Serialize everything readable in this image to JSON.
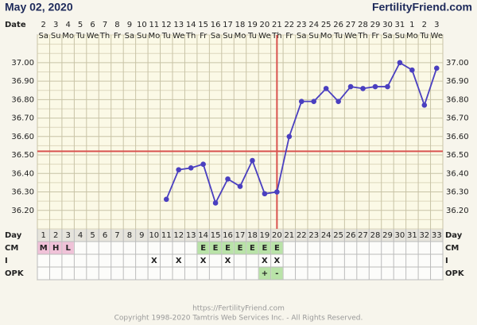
{
  "header": {
    "date": "May 02, 2020",
    "site": "FertilityFriend.com"
  },
  "chart_data": {
    "type": "line",
    "row_labels": {
      "date": "Date",
      "day": "Day",
      "cm": "CM",
      "i": "I",
      "opk": "OPK"
    },
    "dates": [
      2,
      3,
      4,
      5,
      6,
      7,
      8,
      9,
      10,
      11,
      12,
      13,
      14,
      15,
      16,
      17,
      18,
      19,
      20,
      21,
      22,
      23,
      24,
      25,
      26,
      27,
      28,
      29,
      30,
      31,
      1,
      2,
      3
    ],
    "weekdays": [
      "Sa",
      "Su",
      "Mo",
      "Tu",
      "We",
      "Th",
      "Fr",
      "Sa",
      "Su",
      "Mo",
      "Tu",
      "We",
      "Th",
      "Fr",
      "Sa",
      "Su",
      "Mo",
      "Tu",
      "We",
      "Th",
      "Fr",
      "Sa",
      "Su",
      "Mo",
      "Tu",
      "We",
      "Th",
      "Fr",
      "Sa",
      "Su",
      "Mo",
      "Tu",
      "We"
    ],
    "categories": [
      1,
      2,
      3,
      4,
      5,
      6,
      7,
      8,
      9,
      10,
      11,
      12,
      13,
      14,
      15,
      16,
      17,
      18,
      19,
      20,
      21,
      22,
      23,
      24,
      25,
      26,
      27,
      28,
      29,
      30,
      31,
      32,
      33
    ],
    "values": [
      null,
      null,
      null,
      null,
      null,
      null,
      null,
      null,
      null,
      null,
      36.26,
      36.42,
      36.43,
      36.45,
      36.24,
      36.37,
      36.33,
      36.47,
      36.29,
      36.3,
      36.6,
      36.79,
      36.79,
      36.86,
      36.79,
      36.87,
      36.86,
      36.87,
      36.87,
      37.0,
      36.96,
      36.77,
      36.97
    ],
    "color": "#4a3fc0",
    "ylim": [
      36.1,
      37.15
    ],
    "yticks": [
      {
        "value": 37,
        "label": "37.00"
      },
      {
        "value": 36.9,
        "label": "36.90"
      },
      {
        "value": 36.8,
        "label": "36.80"
      },
      {
        "value": 36.7,
        "label": "36.70"
      },
      {
        "value": 36.6,
        "label": "36.60"
      },
      {
        "value": 36.5,
        "label": "36.50"
      },
      {
        "value": 36.4,
        "label": "36.40"
      },
      {
        "value": 36.3,
        "label": "36.30"
      },
      {
        "value": 36.2,
        "label": "36.20"
      }
    ],
    "grid": true,
    "coverline": 36.52,
    "ovulation_day": 20,
    "marker_color": "#d9534f",
    "cm": [
      {
        "label": "M",
        "color": "#f0c2d8"
      },
      {
        "label": "H",
        "color": "#f0c2d8"
      },
      {
        "label": "L",
        "color": "#f0c2d8"
      },
      null,
      null,
      null,
      null,
      null,
      null,
      null,
      null,
      null,
      null,
      {
        "label": "E",
        "color": "#b9e3a8"
      },
      {
        "label": "E",
        "color": "#b9e3a8"
      },
      {
        "label": "E",
        "color": "#b9e3a8"
      },
      {
        "label": "E",
        "color": "#b9e3a8"
      },
      {
        "label": "E",
        "color": "#b9e3a8"
      },
      {
        "label": "E",
        "color": "#b9e3a8"
      },
      {
        "label": "E",
        "color": "#b9e3a8"
      },
      null,
      null,
      null,
      null,
      null,
      null,
      null,
      null,
      null,
      null,
      null,
      null,
      null
    ],
    "intercourse": [
      null,
      null,
      null,
      null,
      null,
      null,
      null,
      null,
      null,
      "X",
      null,
      "X",
      null,
      "X",
      null,
      "X",
      null,
      null,
      "X",
      "X",
      null,
      null,
      null,
      null,
      null,
      null,
      null,
      null,
      null,
      null,
      null,
      null,
      null
    ],
    "opk": [
      null,
      null,
      null,
      null,
      null,
      null,
      null,
      null,
      null,
      null,
      null,
      null,
      null,
      null,
      null,
      null,
      null,
      null,
      {
        "label": "+",
        "color": "#b9e3a8"
      },
      {
        "label": "-",
        "color": "#b9e3a8"
      },
      null,
      null,
      null,
      null,
      null,
      null,
      null,
      null,
      null,
      null,
      null,
      null,
      null
    ]
  },
  "footer": {
    "url": "https://FertilityFriend.com",
    "copyright": "Copyright 1998-2020 Tamtris Web Services Inc. - All Rights Reserved."
  }
}
